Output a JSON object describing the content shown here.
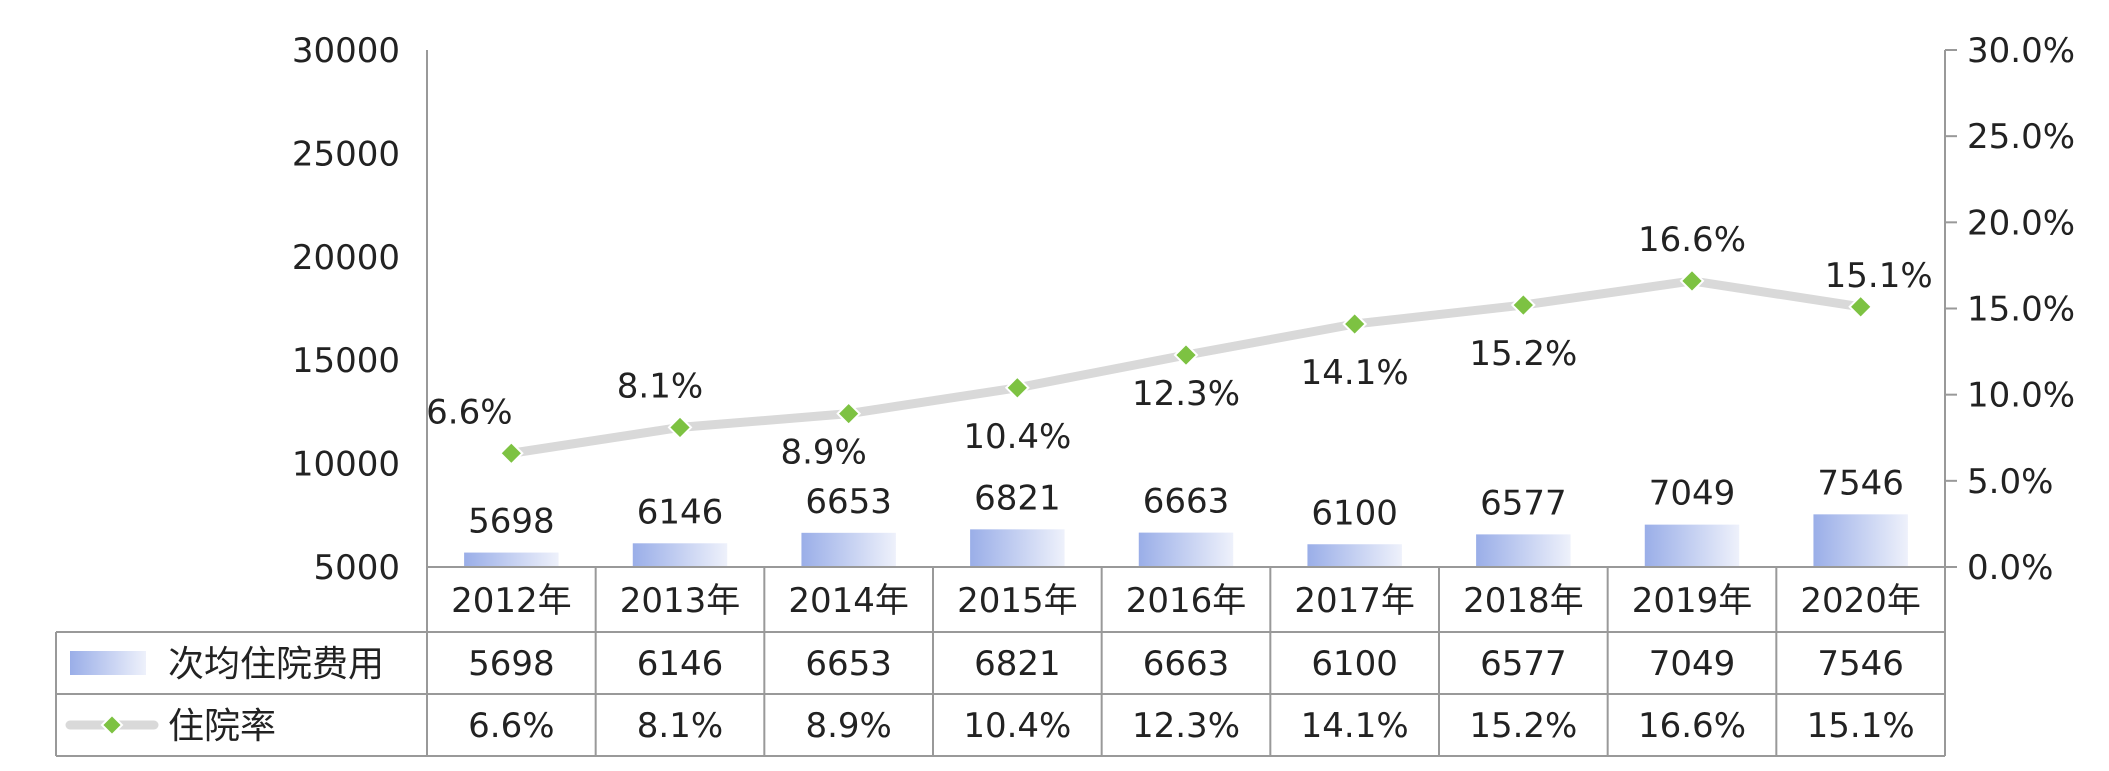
{
  "chart_data": {
    "type": "bar",
    "categories": [
      "2012年",
      "2013年",
      "2014年",
      "2015年",
      "2016年",
      "2017年",
      "2018年",
      "2019年",
      "2020年"
    ],
    "series": [
      {
        "name": "次均住院费用",
        "type": "bar",
        "axis": "left",
        "values": [
          5698,
          6146,
          6653,
          6821,
          6663,
          6100,
          6577,
          7049,
          7546
        ],
        "labels": [
          "5698",
          "6146",
          "6653",
          "6821",
          "6663",
          "6100",
          "6577",
          "7049",
          "7546"
        ]
      },
      {
        "name": "住院率",
        "type": "line",
        "axis": "right",
        "values": [
          6.6,
          8.1,
          8.9,
          10.4,
          12.3,
          14.1,
          15.2,
          16.6,
          15.1
        ],
        "labels": [
          "6.6%",
          "8.1%",
          "8.9%",
          "10.4%",
          "12.3%",
          "14.1%",
          "15.2%",
          "16.6%",
          "15.1%"
        ]
      }
    ],
    "y_left": {
      "range": [
        5000,
        30000
      ],
      "ticks": [
        5000,
        10000,
        15000,
        20000,
        25000,
        30000
      ],
      "tick_labels": [
        "5000",
        "10000",
        "15000",
        "20000",
        "25000",
        "30000"
      ]
    },
    "y_right": {
      "range": [
        0,
        30
      ],
      "ticks": [
        0,
        5,
        10,
        15,
        20,
        25,
        30
      ],
      "tick_labels": [
        "0.0%",
        "5.0%",
        "10.0%",
        "15.0%",
        "20.0%",
        "25.0%",
        "30.0%"
      ]
    },
    "data_table": true,
    "legend_placement": "data-table-left",
    "grid": false,
    "colors": {
      "bar_start": "#9aaee8",
      "bar_end": "#eef1fb",
      "line": "#d9d9d9",
      "marker": "#7dc242",
      "marker_stroke": "#ffffff",
      "table_border": "#999999"
    }
  }
}
